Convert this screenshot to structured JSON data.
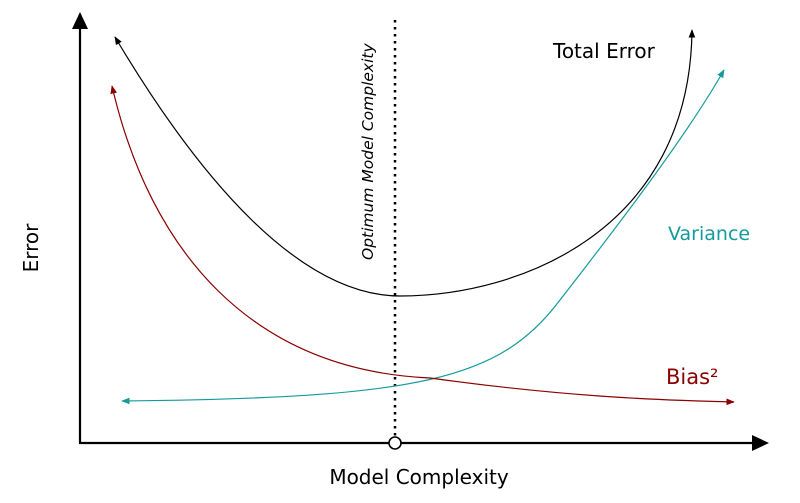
{
  "diagram": {
    "x_axis_label": "Model Complexity",
    "y_axis_label": "Error",
    "optimum_label": "Optimum Model Complexity",
    "curves": {
      "total_error": {
        "label": "Total Error",
        "color": "#000000"
      },
      "variance": {
        "label": "Variance",
        "color": "#139b9b"
      },
      "bias": {
        "label": "Bias²",
        "color": "#8b0000"
      }
    },
    "optimum_line_color": "#000000",
    "axis_color": "#000000"
  }
}
